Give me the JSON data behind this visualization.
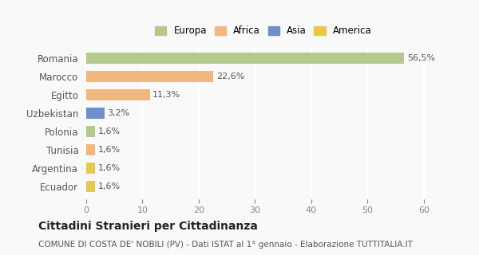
{
  "countries": [
    "Romania",
    "Marocco",
    "Egitto",
    "Uzbekistan",
    "Polonia",
    "Tunisia",
    "Argentina",
    "Ecuador"
  ],
  "values": [
    56.5,
    22.6,
    11.3,
    3.2,
    1.6,
    1.6,
    1.6,
    1.6
  ],
  "labels": [
    "56,5%",
    "22,6%",
    "11,3%",
    "3,2%",
    "1,6%",
    "1,6%",
    "1,6%",
    "1,6%"
  ],
  "colors": [
    "#b5c98e",
    "#f0b87c",
    "#f0b87c",
    "#6e8fc7",
    "#b5c98e",
    "#f0b87c",
    "#e8c84a",
    "#e8c84a"
  ],
  "legend_labels": [
    "Europa",
    "Africa",
    "Asia",
    "America"
  ],
  "legend_colors": [
    "#b5c98e",
    "#f0b87c",
    "#6e8fc7",
    "#e8c84a"
  ],
  "title": "Cittadini Stranieri per Cittadinanza",
  "subtitle": "COMUNE DI COSTA DE' NOBILI (PV) - Dati ISTAT al 1° gennaio - Elaborazione TUTTITALIA.IT",
  "xlim": [
    0,
    63
  ],
  "xticks": [
    0,
    10,
    20,
    30,
    40,
    50,
    60
  ],
  "background_color": "#f9f9f9",
  "grid_color": "#ffffff",
  "bar_height": 0.6
}
